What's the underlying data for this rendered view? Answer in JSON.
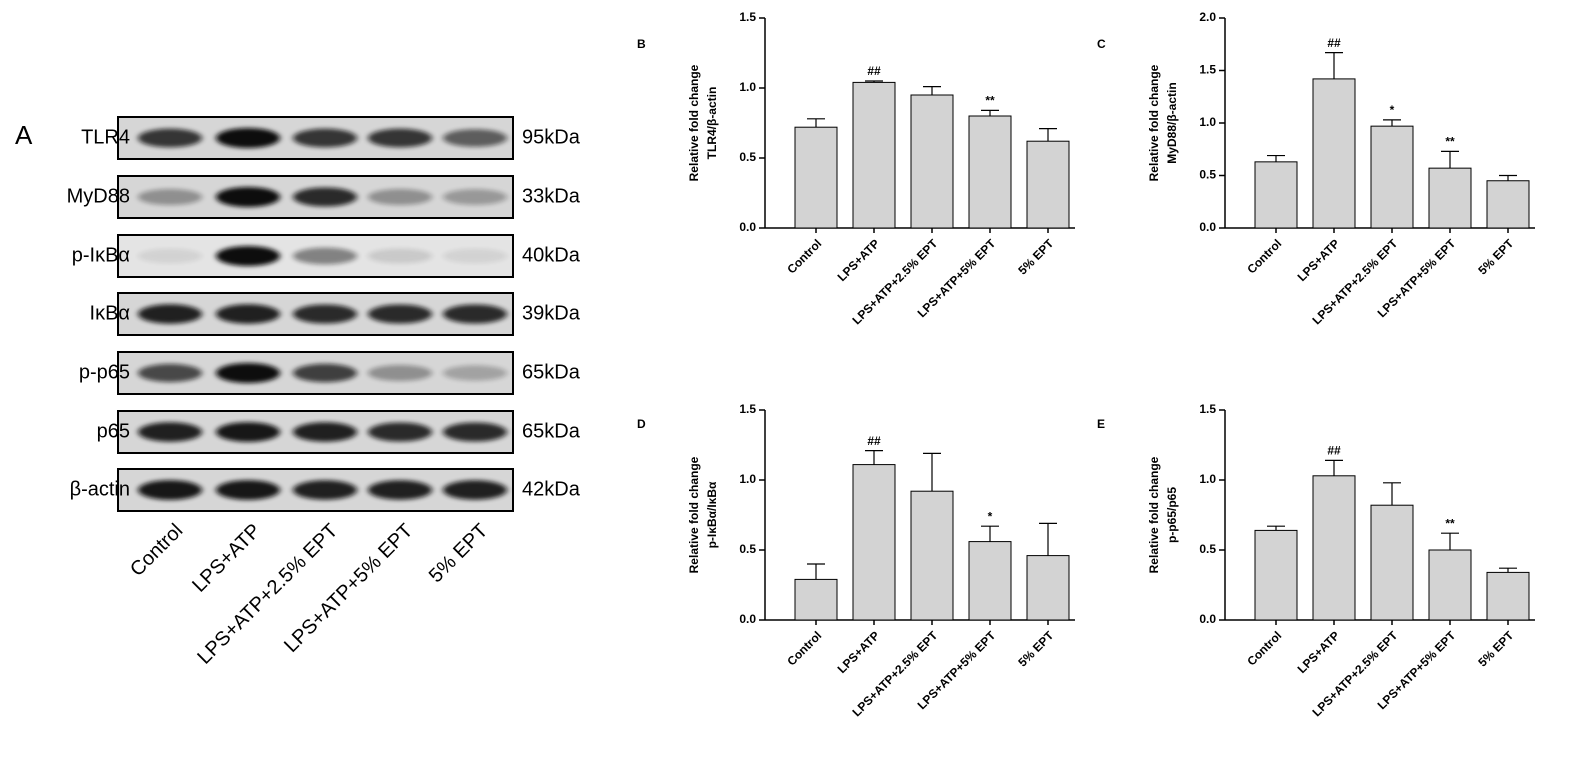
{
  "blot": {
    "label": "A",
    "proteins": [
      "TLR4",
      "MyD88",
      "p-IκBα",
      "IκBα",
      "p-p65",
      "p65",
      "β-actin"
    ],
    "sizes": [
      "95kDa",
      "33kDa",
      "40kDa",
      "39kDa",
      "65kDa",
      "65kDa",
      "42kDa"
    ],
    "lanes": [
      "Control",
      "LPS+ATP",
      "LPS+ATP+2.5% EPT",
      "LPS+ATP+5% EPT",
      "5% EPT"
    ]
  },
  "chart_data": [
    {
      "type": "bar",
      "panel": "B",
      "ylabel": [
        "Relative fold change",
        "TLR4/β-actin"
      ],
      "categories": [
        "Control",
        "LPS+ATP",
        "LPS+ATP+2.5% EPT",
        "LPS+ATP+5% EPT",
        "5% EPT"
      ],
      "values": [
        0.72,
        1.04,
        0.95,
        0.8,
        0.62
      ],
      "errors": [
        0.06,
        0.01,
        0.06,
        0.04,
        0.09
      ],
      "annotations": [
        null,
        "##",
        null,
        "**",
        null
      ],
      "color": "#d3d3d3",
      "ylim": [
        0,
        1.5
      ],
      "yticks": [
        {
          "value": 0,
          "label": "0.0"
        },
        0.5,
        {
          "value": 1,
          "label": "1.0"
        },
        1.5
      ]
    },
    {
      "type": "bar",
      "panel": "C",
      "ylabel": [
        "Relative fold change",
        "MyD88/β-actin"
      ],
      "categories": [
        "Control",
        "LPS+ATP",
        "LPS+ATP+2.5% EPT",
        "LPS+ATP+5% EPT",
        "5% EPT"
      ],
      "values": [
        0.63,
        1.42,
        0.97,
        0.57,
        0.45
      ],
      "errors": [
        0.06,
        0.25,
        0.06,
        0.16,
        0.05
      ],
      "annotations": [
        null,
        "##",
        "*",
        "**",
        null
      ],
      "color": "#d3d3d3",
      "ylim": [
        0,
        2
      ],
      "yticks": [
        {
          "value": 0,
          "label": "0.0"
        },
        0.5,
        {
          "value": 1,
          "label": "1.0"
        },
        1.5,
        {
          "value": 2,
          "label": "2.0"
        }
      ]
    },
    {
      "type": "bar",
      "panel": "D",
      "ylabel": [
        "Relative fold change",
        "p-IκBα/IκBα"
      ],
      "categories": [
        "Control",
        "LPS+ATP",
        "LPS+ATP+2.5% EPT",
        "LPS+ATP+5% EPT",
        "5% EPT"
      ],
      "values": [
        0.29,
        1.11,
        0.92,
        0.56,
        0.46
      ],
      "errors": [
        0.11,
        0.1,
        0.27,
        0.11,
        0.23
      ],
      "annotations": [
        null,
        "##",
        null,
        "*",
        null
      ],
      "color": "#d3d3d3",
      "ylim": [
        0,
        1.5
      ],
      "yticks": [
        {
          "value": 0,
          "label": "0.0"
        },
        0.5,
        {
          "value": 1,
          "label": "1.0"
        },
        1.5
      ]
    },
    {
      "type": "bar",
      "panel": "E",
      "ylabel": [
        "Relative fold change",
        "p-p65/p65"
      ],
      "categories": [
        "Control",
        "LPS+ATP",
        "LPS+ATP+2.5% EPT",
        "LPS+ATP+5% EPT",
        "5% EPT"
      ],
      "values": [
        0.64,
        1.03,
        0.82,
        0.5,
        0.34
      ],
      "errors": [
        0.03,
        0.11,
        0.16,
        0.12,
        0.03
      ],
      "annotations": [
        null,
        "##",
        null,
        "**",
        null
      ],
      "color": "#d3d3d3",
      "ylim": [
        0,
        1.5
      ],
      "yticks": [
        {
          "value": 0,
          "label": "0.0"
        },
        0.5,
        {
          "value": 1,
          "label": "1.0"
        },
        1.5
      ]
    }
  ]
}
